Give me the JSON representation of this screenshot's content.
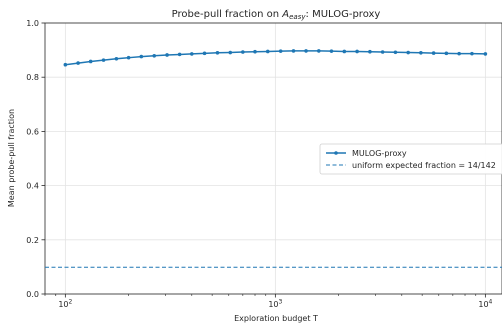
{
  "chart_data": {
    "type": "line",
    "title_prefix": "Probe-pull fraction on ",
    "title_symbol": "A",
    "title_subscript": "easy",
    "title_suffix": ": MULOG-proxy",
    "xlabel": "Exploration budget T",
    "ylabel": "Mean probe-pull fraction",
    "xscale": "log",
    "xlim": [
      80,
      12000
    ],
    "ylim": [
      0.0,
      1.0
    ],
    "x_ticks": [
      {
        "value": 100,
        "base": "10",
        "exp": "2"
      },
      {
        "value": 1000,
        "base": "10",
        "exp": "3"
      },
      {
        "value": 10000,
        "base": "10",
        "exp": "4"
      }
    ],
    "y_ticks": [
      {
        "value": 0.0,
        "label": "0.0"
      },
      {
        "value": 0.2,
        "label": "0.2"
      },
      {
        "value": 0.4,
        "label": "0.4"
      },
      {
        "value": 0.6,
        "label": "0.6"
      },
      {
        "value": 0.8,
        "label": "0.8"
      },
      {
        "value": 1.0,
        "label": "1.0"
      }
    ],
    "grid": true,
    "legend_position": "center-right",
    "series": [
      {
        "name": "MULOG-proxy",
        "color": "#1f77b4",
        "style": "line-marker",
        "x": [
          100,
          115,
          132,
          152,
          175,
          200,
          230,
          265,
          305,
          350,
          400,
          460,
          530,
          610,
          700,
          800,
          920,
          1060,
          1220,
          1400,
          1610,
          1850,
          2130,
          2450,
          2820,
          3240,
          3730,
          4290,
          4930,
          5670,
          6520,
          7500,
          8630,
          10000
        ],
        "values": [
          0.846,
          0.852,
          0.858,
          0.863,
          0.868,
          0.872,
          0.876,
          0.879,
          0.882,
          0.884,
          0.886,
          0.888,
          0.89,
          0.891,
          0.893,
          0.894,
          0.895,
          0.896,
          0.897,
          0.897,
          0.897,
          0.896,
          0.895,
          0.895,
          0.894,
          0.893,
          0.892,
          0.891,
          0.89,
          0.889,
          0.888,
          0.887,
          0.887,
          0.886
        ]
      },
      {
        "name": "uniform expected fraction = 14/142",
        "color": "#1f77b4",
        "style": "dashed",
        "y": 0.0986
      }
    ]
  }
}
